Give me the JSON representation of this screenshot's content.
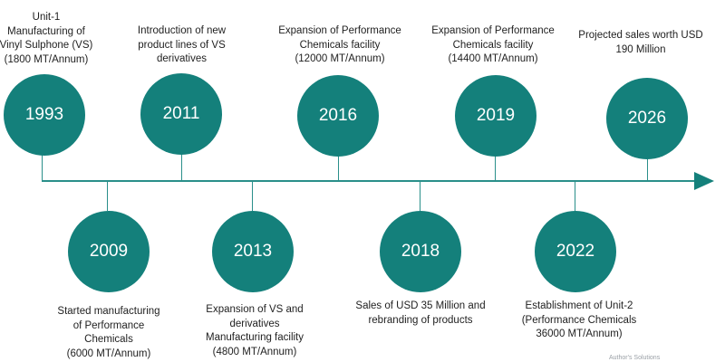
{
  "colors": {
    "accent": "#14807b",
    "axis": "#2a8f8a",
    "text": "#1f1f1f",
    "circle_text": "#ffffff"
  },
  "milestones": [
    {
      "year": "1993",
      "text": "Unit-1\nManufacturing of\nVinyl Sulphone (VS)\n(1800 MT/Annum)"
    },
    {
      "year": "2009",
      "text": "Started manufacturing\nof Performance\nChemicals\n(6000 MT/Annum)"
    },
    {
      "year": "2011",
      "text": "Introduction of new\nproduct lines of VS\nderivatives"
    },
    {
      "year": "2013",
      "text": "Expansion of VS and\nderivatives\nManufacturing facility\n(4800 MT/Annum)"
    },
    {
      "year": "2016",
      "text": "Expansion of Performance\nChemicals facility\n(12000 MT/Annum)"
    },
    {
      "year": "2018",
      "text": "Sales of USD 35 Million and\nrebranding of products"
    },
    {
      "year": "2019",
      "text": "Expansion of Performance\nChemicals facility\n(14400 MT/Annum)"
    },
    {
      "year": "2022",
      "text": "Establishment of Unit-2\n(Performance Chemicals\n36000 MT/Annum)"
    },
    {
      "year": "2026",
      "text": "Projected sales worth USD\n190 Million"
    }
  ],
  "footer_text": "Author's Solutions"
}
